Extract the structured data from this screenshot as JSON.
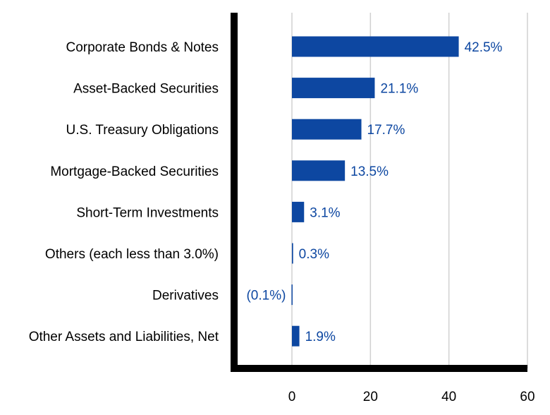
{
  "chart_data": {
    "type": "bar",
    "orientation": "horizontal",
    "categories": [
      "Corporate Bonds & Notes",
      "Asset-Backed Securities",
      "U.S. Treasury Obligations",
      "Mortgage-Backed Securities",
      "Short-Term Investments",
      "Others (each less than 3.0%)",
      "Derivatives",
      "Other Assets and Liabilities, Net"
    ],
    "values": [
      42.5,
      21.1,
      17.7,
      13.5,
      3.1,
      0.3,
      -0.1,
      1.9
    ],
    "data_labels": [
      "42.5%",
      "21.1%",
      "17.7%",
      "13.5%",
      "3.1%",
      "0.3%",
      "(0.1%)",
      "1.9%"
    ],
    "title": "",
    "xlabel": "",
    "ylabel": "",
    "xlim": [
      -15.5,
      60
    ],
    "x_ticks": [
      0,
      20,
      40,
      60
    ],
    "x_tick_labels": [
      "0",
      "20",
      "40",
      "60"
    ],
    "grid": "vertical",
    "legend": "none",
    "colors": {
      "bar": "#0d47a1",
      "data_label": "#0d47a1",
      "grid": "#d0d0d0",
      "axis": "#000000"
    }
  }
}
